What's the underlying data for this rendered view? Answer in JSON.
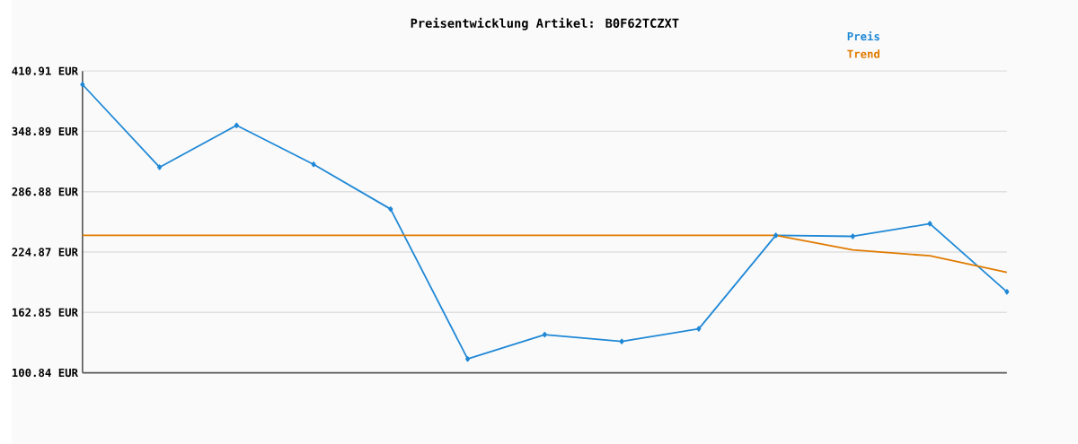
{
  "chart_data": {
    "type": "line",
    "title": "Preisentwicklung Artikel: B0F62TCZXT",
    "categories": [
      null,
      null,
      null,
      null,
      null,
      null,
      null,
      null,
      null,
      null,
      null,
      null,
      null
    ],
    "series": [
      {
        "name": "Preis",
        "color": "#1f88d6",
        "marker": "diamond",
        "values": [
          397,
          312,
          355,
          315,
          269,
          115,
          140,
          133,
          146,
          242,
          241,
          254,
          184
        ]
      },
      {
        "name": "Trend",
        "color": "#e07b00",
        "marker": "none",
        "values": [
          242,
          242,
          242,
          242,
          242,
          242,
          242,
          242,
          242,
          242,
          227,
          221,
          204
        ]
      }
    ],
    "ylim": [
      100.84,
      410.91
    ],
    "yticks": [
      {
        "value": 100.84,
        "label": "100.84 EUR"
      },
      {
        "value": 162.85,
        "label": "162.85 EUR"
      },
      {
        "value": 224.87,
        "label": "224.87 EUR"
      },
      {
        "value": 286.88,
        "label": "286.88 EUR"
      },
      {
        "value": 348.89,
        "label": "348.89 EUR"
      },
      {
        "value": 410.91,
        "label": "410.91 EUR"
      }
    ],
    "grid": "y",
    "legend": "top right",
    "tick_labels": "y"
  }
}
